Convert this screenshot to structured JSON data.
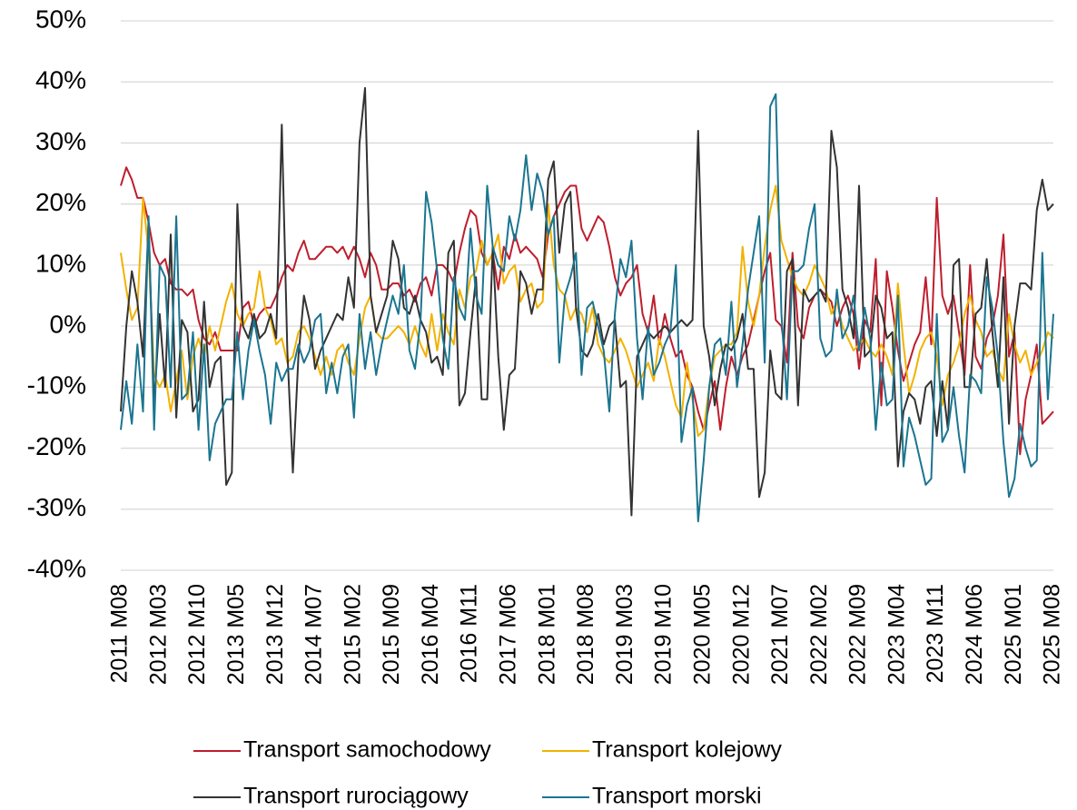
{
  "chart_data": {
    "type": "line",
    "categories": [
      "2011 M08",
      null,
      null,
      null,
      null,
      null,
      null,
      "2012 M03",
      null,
      null,
      null,
      null,
      null,
      null,
      "2012 M10",
      null,
      null,
      null,
      null,
      null,
      null,
      "2013 M05",
      null,
      null,
      null,
      null,
      null,
      null,
      "2013 M12",
      null,
      null,
      null,
      null,
      null,
      null,
      "2014 M07",
      null,
      null,
      null,
      null,
      null,
      null,
      "2015 M02",
      null,
      null,
      null,
      null,
      null,
      null,
      "2015 M09",
      null,
      null,
      null,
      null,
      null,
      null,
      "2016 M04",
      null,
      null,
      null,
      null,
      null,
      null,
      "2016 M11",
      null,
      null,
      null,
      null,
      null,
      null,
      "2017 M06",
      null,
      null,
      null,
      null,
      null,
      null,
      "2018 M01",
      null,
      null,
      null,
      null,
      null,
      null,
      "2018 M08",
      null,
      null,
      null,
      null,
      null,
      null,
      "2019 M03",
      null,
      null,
      null,
      null,
      null,
      null,
      "2019 M10",
      null,
      null,
      null,
      null,
      null,
      null,
      "2020 M05",
      null,
      null,
      null,
      null,
      null,
      null,
      "2020 M12",
      null,
      null,
      null,
      null,
      null,
      null,
      "2021 M07",
      null,
      null,
      null,
      null,
      null,
      null,
      "2022 M02",
      null,
      null,
      null,
      null,
      null,
      null,
      "2022 M09",
      null,
      null,
      null,
      null,
      null,
      null,
      "2023 M04",
      null,
      null,
      null,
      null,
      null,
      null,
      "2023 M11",
      null,
      null,
      null,
      null,
      null,
      null,
      "2024 M06",
      null,
      null,
      null,
      null,
      null,
      null,
      "2025 M01",
      null,
      null,
      null,
      null,
      null,
      null,
      "2025 M08"
    ],
    "series": [
      {
        "name": "Transport samochodowy",
        "color": "#be1e2d",
        "values": [
          23,
          26,
          24,
          21,
          21,
          17,
          12,
          10,
          11,
          7,
          6,
          6,
          5,
          6,
          1,
          -2,
          -3,
          -1,
          -4,
          -4,
          -4,
          -4,
          3,
          4,
          0,
          2,
          3,
          3,
          5,
          8,
          10,
          9,
          12,
          14,
          11,
          11,
          12,
          13,
          13,
          12,
          13,
          11,
          13,
          11,
          8,
          12,
          10,
          6,
          6,
          7,
          7,
          5,
          6,
          4,
          7,
          8,
          5,
          10,
          10,
          9,
          7,
          12,
          16,
          19,
          18,
          12,
          10,
          12,
          6,
          13,
          11,
          15,
          12,
          13,
          12,
          11,
          8,
          15,
          18,
          20,
          22,
          23,
          23,
          16,
          14,
          16,
          18,
          17,
          13,
          8,
          5,
          7,
          8,
          10,
          2,
          -1,
          5,
          -3,
          2,
          -2,
          -5,
          -4,
          -8,
          -10,
          -14,
          -17,
          -13,
          -9,
          -17,
          -10,
          -5,
          -8,
          -5,
          -3,
          1,
          5,
          9,
          12,
          1,
          0,
          -6,
          12,
          0,
          -2,
          3,
          5,
          6,
          5,
          4,
          0,
          3,
          5,
          2,
          -7,
          1,
          -1,
          11,
          -13,
          9,
          3,
          -4,
          -9,
          -6,
          -3,
          -1,
          8,
          -3,
          21,
          5,
          2,
          5,
          -1,
          -8,
          10,
          -5,
          -7,
          -2,
          0,
          5,
          15,
          -5,
          -1,
          -21,
          -12,
          -8,
          -3,
          -16,
          -15,
          -14
        ]
      },
      {
        "name": "Transport kolejowy",
        "color": "#f2b200",
        "values": [
          12,
          6,
          1,
          3,
          21,
          12,
          -8,
          -10,
          -8,
          -14,
          -9,
          -4,
          -12,
          -5,
          -2,
          -5,
          0,
          -4,
          0,
          4,
          7,
          2,
          0,
          2,
          3,
          9,
          3,
          1,
          -3,
          -2,
          -6,
          -5,
          -1,
          0,
          -2,
          -5,
          -8,
          -5,
          -8,
          -4,
          -3,
          -6,
          -8,
          -2,
          3,
          5,
          -1,
          -2,
          -2,
          -1,
          0,
          -1,
          -3,
          0,
          -3,
          -5,
          2,
          -4,
          2,
          -1,
          -3,
          6,
          3,
          8,
          9,
          14,
          10,
          12,
          15,
          7,
          9,
          10,
          4,
          6,
          7,
          3,
          4,
          20,
          10,
          6,
          5,
          1,
          3,
          2,
          -1,
          3,
          -3,
          -5,
          -6,
          -4,
          -2,
          -4,
          -7,
          -10,
          -8,
          -6,
          -9,
          -2,
          -5,
          -9,
          -13,
          -15,
          -6,
          -12,
          -18,
          -17,
          -10,
          -5,
          -4,
          -3,
          -3,
          -1,
          13,
          4,
          0,
          5,
          13,
          19,
          23,
          14,
          11,
          8,
          6,
          5,
          7,
          10,
          8,
          6,
          2,
          4,
          0,
          -2,
          -4,
          -3,
          -2,
          -4,
          -5,
          -3,
          -5,
          -8,
          7,
          -3,
          -11,
          -8,
          -4,
          -2,
          -1,
          -5,
          -13,
          -8,
          -6,
          -3,
          2,
          5,
          1,
          -1,
          -5,
          -4,
          -7,
          -9,
          2,
          -3,
          -6,
          -4,
          -8,
          -6,
          -4,
          -1,
          -2
        ]
      },
      {
        "name": "Transport rurociągowy",
        "color": "#333333",
        "values": [
          -14,
          0,
          9,
          4,
          -5,
          17,
          -13,
          2,
          -10,
          15,
          -15,
          1,
          -1,
          -14,
          -12,
          4,
          -10,
          -6,
          -5,
          -26,
          -24,
          20,
          0,
          -2,
          2,
          -2,
          -1,
          2,
          -2,
          33,
          -4,
          -24,
          -5,
          5,
          1,
          -7,
          -4,
          -2,
          0,
          2,
          1,
          8,
          3,
          30,
          39,
          5,
          -1,
          2,
          5,
          14,
          11,
          3,
          2,
          5,
          1,
          -1,
          -6,
          -5,
          -8,
          12,
          14,
          -13,
          -11,
          -1,
          8,
          -12,
          -12,
          13,
          -5,
          -17,
          -8,
          -7,
          9,
          7,
          2,
          6,
          6,
          24,
          27,
          12,
          20,
          22,
          3,
          -4,
          -5,
          -3,
          2,
          -3,
          0,
          1,
          -10,
          -9,
          -31,
          -5,
          -3,
          -1,
          -2,
          -1,
          0,
          -1,
          0,
          1,
          0,
          1,
          32,
          0,
          -5,
          -13,
          -7,
          -3,
          -4,
          -2,
          2,
          -7,
          -7,
          -28,
          -24,
          -4,
          -11,
          -12,
          9,
          11,
          -13,
          6,
          4,
          5,
          6,
          4,
          32,
          26,
          6,
          3,
          -2,
          23,
          -5,
          -4,
          5,
          3,
          -2,
          -1,
          -23,
          -14,
          -11,
          -12,
          -16,
          -10,
          -9,
          -18,
          -9,
          -17,
          10,
          11,
          -10,
          -10,
          2,
          3,
          11,
          -1,
          -10,
          8,
          -16,
          0,
          7,
          7,
          6,
          19,
          24,
          19,
          20
        ]
      },
      {
        "name": "Transport morski",
        "color": "#1b7590",
        "values": [
          -17,
          -9,
          -16,
          -3,
          -14,
          18,
          -17,
          10,
          8,
          -10,
          18,
          -12,
          -11,
          -1,
          -17,
          -3,
          -22,
          -16,
          -14,
          -12,
          -12,
          -1,
          -12,
          -4,
          1,
          -4,
          -8,
          -16,
          -6,
          -9,
          -7,
          -7,
          -3,
          -6,
          -4,
          1,
          2,
          -11,
          -6,
          -11,
          -5,
          -3,
          -15,
          2,
          -7,
          -1,
          -8,
          -3,
          1,
          5,
          2,
          10,
          -4,
          -7,
          1,
          22,
          17,
          9,
          -2,
          -7,
          8,
          3,
          1,
          16,
          5,
          2,
          23,
          13,
          10,
          9,
          18,
          14,
          19,
          28,
          19,
          25,
          22,
          15,
          18,
          -6,
          5,
          8,
          12,
          -8,
          3,
          4,
          0,
          -4,
          -14,
          2,
          11,
          8,
          14,
          -2,
          -12,
          0,
          -8,
          -6,
          -3,
          -1,
          10,
          -19,
          -13,
          -10,
          -32,
          -22,
          -10,
          -3,
          -2,
          -8,
          4,
          -10,
          -3,
          6,
          12,
          18,
          -6,
          36,
          38,
          2,
          -12,
          9,
          9,
          10,
          16,
          20,
          -2,
          -5,
          -4,
          6,
          -2,
          0,
          5,
          -4,
          3,
          -2,
          -17,
          -6,
          -13,
          -12,
          5,
          -23,
          -15,
          -18,
          -22,
          -26,
          -25,
          2,
          -19,
          -17,
          -10,
          -18,
          -24,
          -8,
          -9,
          -11,
          8,
          3,
          -5,
          -19,
          -28,
          -25,
          -16,
          -20,
          -23,
          -22,
          12,
          -12,
          2
        ]
      }
    ],
    "ylim": [
      -40,
      50
    ],
    "yticks": [
      {
        "value": -40,
        "label": "-40%"
      },
      {
        "value": -30,
        "label": "-30%"
      },
      {
        "value": -20,
        "label": "-20%"
      },
      {
        "value": -10,
        "label": "-10%"
      },
      {
        "value": 0,
        "label": "0%"
      },
      {
        "value": 10,
        "label": "10%"
      },
      {
        "value": 20,
        "label": "20%"
      },
      {
        "value": 30,
        "label": "30%"
      },
      {
        "value": 40,
        "label": "40%"
      },
      {
        "value": 50,
        "label": "50%"
      }
    ],
    "grid": true,
    "legend": "bottom"
  }
}
